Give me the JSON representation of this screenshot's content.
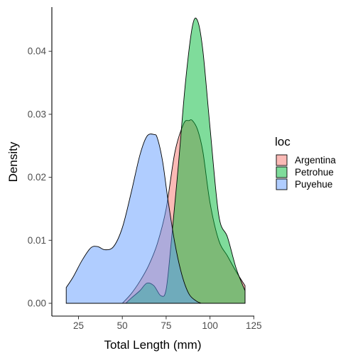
{
  "chart_data": {
    "type": "area",
    "xlabel": "Total Length (mm)",
    "ylabel": "Density",
    "xlim": [
      15,
      125
    ],
    "ylim": [
      0,
      0.048
    ],
    "x_ticks": [
      25,
      50,
      75,
      100,
      125
    ],
    "y_ticks": [
      0.0,
      0.01,
      0.02,
      0.03,
      0.04
    ],
    "y_tick_labels": [
      "0.00",
      "0.01",
      "0.02",
      "0.03",
      "0.04"
    ],
    "grid": false,
    "legend": {
      "title": "loc",
      "position": "right"
    },
    "series": [
      {
        "name": "Argentina",
        "color": "#F8766D",
        "x": [
          50,
          55,
          60,
          65,
          70,
          75,
          80,
          85,
          88,
          90,
          93,
          96,
          100,
          105,
          110,
          115,
          120
        ],
        "y": [
          0.0,
          0.0015,
          0.0035,
          0.006,
          0.0095,
          0.015,
          0.024,
          0.0285,
          0.029,
          0.029,
          0.0275,
          0.024,
          0.016,
          0.01,
          0.0075,
          0.005,
          0.0028
        ]
      },
      {
        "name": "Petrohue",
        "color": "#00BA38",
        "x": [
          52,
          55,
          60,
          64,
          68,
          72,
          75,
          78,
          82,
          86,
          90,
          93,
          96,
          100,
          105,
          110,
          115,
          120
        ],
        "y": [
          0.0,
          0.0008,
          0.002,
          0.0032,
          0.0028,
          0.0012,
          0.0022,
          0.01,
          0.022,
          0.035,
          0.044,
          0.0448,
          0.04,
          0.028,
          0.014,
          0.0105,
          0.0055,
          0.002
        ]
      },
      {
        "name": "Puyehue",
        "color": "#619CFF",
        "x": [
          18,
          22,
          27,
          32,
          36,
          40,
          45,
          50,
          55,
          60,
          64,
          68,
          70,
          73,
          76,
          80,
          84,
          88,
          92,
          95
        ],
        "y": [
          0.0025,
          0.0042,
          0.0068,
          0.0088,
          0.009,
          0.0085,
          0.009,
          0.012,
          0.0175,
          0.0235,
          0.0265,
          0.0268,
          0.0262,
          0.0225,
          0.0165,
          0.0095,
          0.0045,
          0.0015,
          0.0004,
          0.0
        ]
      }
    ]
  }
}
